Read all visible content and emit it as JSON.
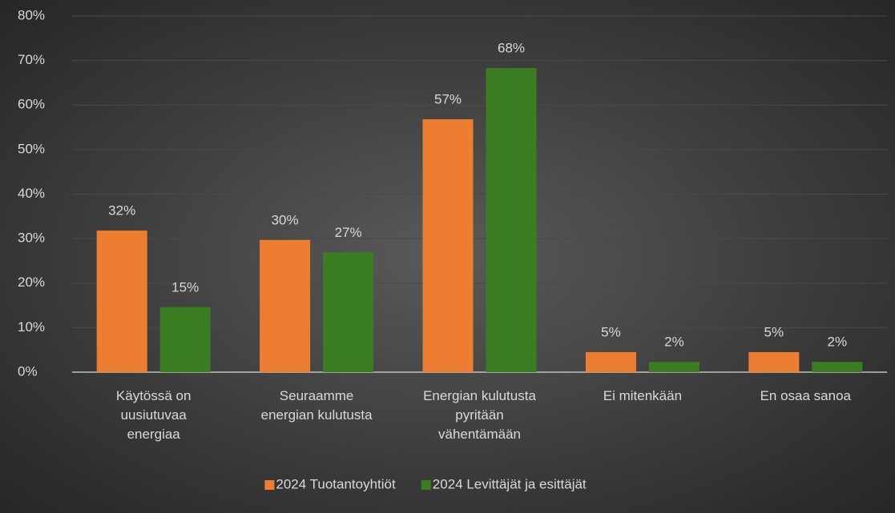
{
  "chart_data": {
    "type": "bar",
    "categories": [
      "Käytössä on\nuusiutuvaa\nenergiaa",
      "Seuraamme\nenergian kulutusta",
      "Energian kulutusta\npyritään\nvähentämään",
      "Ei mitenkään",
      "En osaa sanoa"
    ],
    "series": [
      {
        "name": "2024 Tuotantoyhtiöt",
        "color": "#ed7d31",
        "values": [
          31.8,
          29.7,
          56.8,
          4.5,
          4.5
        ],
        "value_labels": [
          "32%",
          "30%",
          "57%",
          "5%",
          "5%"
        ]
      },
      {
        "name": "2024 Levittäjät ja esittäjät",
        "color": "#3b7d23",
        "values": [
          14.6,
          26.9,
          68.3,
          2.3,
          2.3
        ],
        "value_labels": [
          "15%",
          "27%",
          "68%",
          "2%",
          "2%"
        ]
      }
    ],
    "ylim": [
      0,
      80
    ],
    "yticks": [
      {
        "value": 0,
        "label": "0%"
      },
      {
        "value": 10,
        "label": "10%"
      },
      {
        "value": 20,
        "label": "20%"
      },
      {
        "value": 30,
        "label": "30%"
      },
      {
        "value": 40,
        "label": "40%"
      },
      {
        "value": 50,
        "label": "50%"
      },
      {
        "value": 60,
        "label": "60%"
      },
      {
        "value": 70,
        "label": "70%"
      },
      {
        "value": 80,
        "label": "80%"
      }
    ],
    "grid": true,
    "legend": "bottom"
  }
}
